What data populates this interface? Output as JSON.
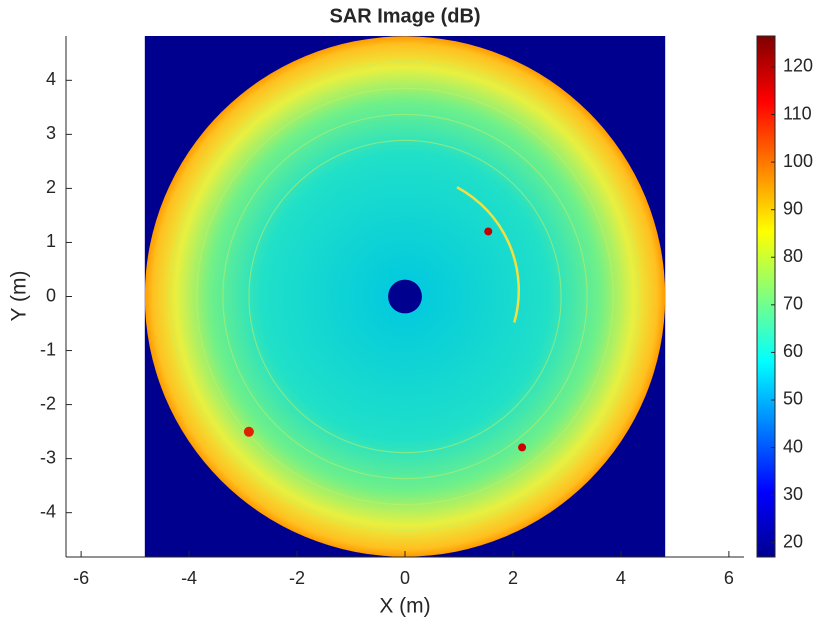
{
  "chart_data": {
    "type": "heatmap",
    "title": "SAR Image (dB)",
    "x_label": "X (m)",
    "y_label": "Y (m)",
    "xlim": [
      -6.28,
      6.28
    ],
    "ylim": [
      -4.82,
      4.82
    ],
    "xticks": [
      -6,
      -4,
      -2,
      0,
      2,
      4,
      6
    ],
    "yticks": [
      -4,
      -3,
      -2,
      -1,
      0,
      1,
      2,
      3,
      4
    ],
    "extent": [
      -4.82,
      4.82,
      -4.82,
      4.82
    ],
    "colormap": "jet",
    "colorbar": {
      "lim": [
        17,
        126.5
      ],
      "ticks": [
        20,
        30,
        40,
        50,
        60,
        70,
        80,
        90,
        100,
        110,
        120
      ]
    }
  }
}
